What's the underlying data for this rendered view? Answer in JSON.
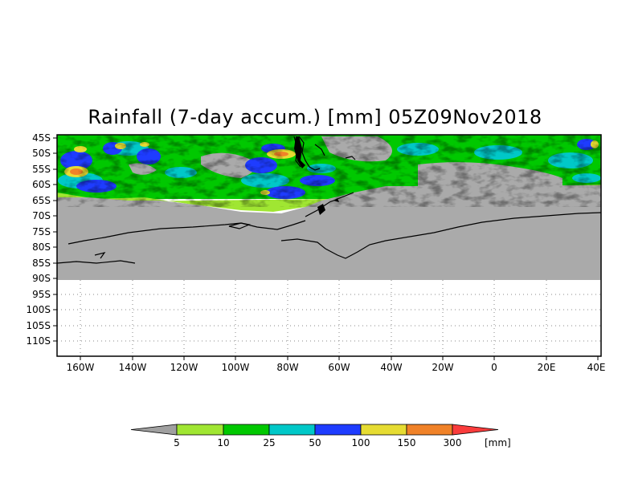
{
  "title": "Rainfall (7-day accum.) [mm] 05Z09Nov2018",
  "map": {
    "lon_range": [
      -170,
      40
    ],
    "lat_range": [
      -45,
      -112.5
    ],
    "lat_ticks": [
      "45S",
      "50S",
      "55S",
      "60S",
      "65S",
      "70S",
      "75S",
      "80S",
      "85S",
      "90S",
      "95S",
      "100S",
      "105S",
      "110S"
    ],
    "lon_ticks": [
      "160W",
      "140W",
      "120W",
      "100W",
      "80W",
      "60W",
      "40W",
      "20W",
      "0",
      "20E",
      "40E"
    ],
    "no_data_color": "#aaaaaa",
    "background_color": "#ffffff",
    "grid": "dotted"
  },
  "colorbar": {
    "levels": [
      "5",
      "10",
      "25",
      "50",
      "100",
      "150",
      "300"
    ],
    "units": "[mm]",
    "colors": [
      "#a0a0a0",
      "#a0e632",
      "#00c800",
      "#00c8c8",
      "#1e3cff",
      "#e6dc32",
      "#f08228",
      "#fa3c3c"
    ]
  }
}
